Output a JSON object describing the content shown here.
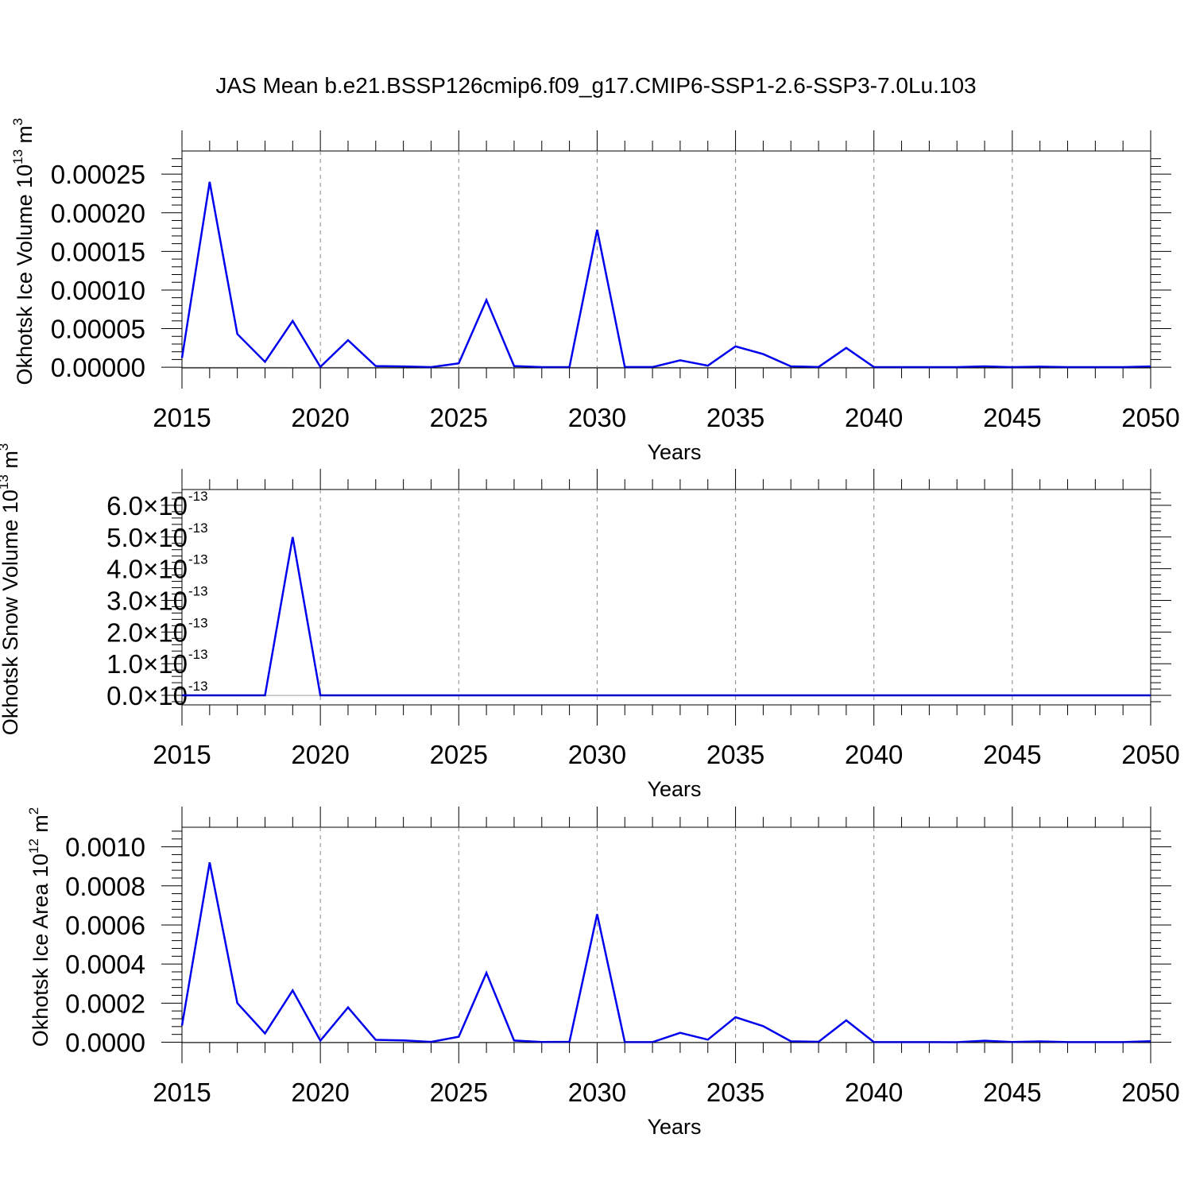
{
  "title": "JAS Mean b.e21.BSSP126cmip6.f09_g17.CMIP6-SSP1-2.6-SSP3-7.0Lu.103",
  "line_color": "#0000ee",
  "chart_data": [
    {
      "type": "line",
      "ylabel_text": "Okhotsk Ice Volume 10",
      "ylabel_exp": "13",
      "ylabel_unit": "m",
      "ylabel_unit_exp": "3",
      "xlabel": "Years",
      "xlim": [
        2015,
        2050
      ],
      "ylim": [
        -9e-07,
        0.00028
      ],
      "xticks": [
        2015,
        2020,
        2025,
        2030,
        2035,
        2040,
        2045,
        2050
      ],
      "xtick_labels": [
        "2015",
        "2020",
        "2025",
        "2030",
        "2035",
        "2040",
        "2045",
        "2050"
      ],
      "yticks": [
        0,
        5e-05,
        0.0001,
        0.00015,
        0.0002,
        0.00025
      ],
      "ytick_labels": [
        "0.00000",
        "0.00005",
        "0.00010",
        "0.00015",
        "0.00020",
        "0.00025"
      ],
      "grid": "vertical dashed",
      "x": [
        2015,
        2016,
        2017,
        2018,
        2019,
        2020,
        2021,
        2022,
        2023,
        2024,
        2025,
        2026,
        2027,
        2028,
        2029,
        2030,
        2031,
        2032,
        2033,
        2034,
        2035,
        2036,
        2037,
        2038,
        2039,
        2040,
        2041,
        2042,
        2043,
        2044,
        2045,
        2046,
        2047,
        2048,
        2049,
        2050
      ],
      "values": [
        1.2e-05,
        0.00024,
        4.3e-05,
        7e-06,
        6e-05,
        5e-07,
        3.5e-05,
        1.5e-06,
        1e-06,
        1e-07,
        5e-06,
        8.7e-05,
        1.5e-06,
        1e-07,
        2e-07,
        0.000178,
        3e-07,
        2e-07,
        9e-06,
        2e-06,
        2.7e-05,
        1.7e-05,
        1.2e-06,
        3e-07,
        2.5e-05,
        2e-07,
        1e-07,
        1e-07,
        1e-07,
        1.2e-06,
        1e-07,
        8e-07,
        1e-07,
        1e-07,
        1e-07,
        1e-06
      ]
    },
    {
      "type": "line",
      "ylabel_text": "Okhotsk Snow Volume 10",
      "ylabel_exp": "13",
      "ylabel_unit": "m",
      "ylabel_unit_exp": "3",
      "xlabel": "Years",
      "xlim": [
        2015,
        2050
      ],
      "ylim": [
        -3e-14,
        6.5e-13
      ],
      "xticks": [
        2015,
        2020,
        2025,
        2030,
        2035,
        2040,
        2045,
        2050
      ],
      "xtick_labels": [
        "2015",
        "2020",
        "2025",
        "2030",
        "2035",
        "2040",
        "2045",
        "2050"
      ],
      "yticks": [
        0,
        1e-13,
        2e-13,
        3e-13,
        4e-13,
        5e-13,
        6e-13
      ],
      "ytick_labels": [
        "0.0",
        "1.0",
        "2.0",
        "3.0",
        "4.0",
        "5.0",
        "6.0"
      ],
      "ytick_times": "×",
      "ytick_base": "10",
      "ytick_exp": "-13",
      "grid": "vertical dashed",
      "x": [
        2015,
        2016,
        2017,
        2018,
        2019,
        2020,
        2021,
        2022,
        2023,
        2024,
        2025,
        2026,
        2027,
        2028,
        2029,
        2030,
        2031,
        2032,
        2033,
        2034,
        2035,
        2036,
        2037,
        2038,
        2039,
        2040,
        2041,
        2042,
        2043,
        2044,
        2045,
        2046,
        2047,
        2048,
        2049,
        2050
      ],
      "values": [
        0,
        0,
        0,
        0,
        5e-13,
        0,
        0,
        0,
        0,
        0,
        0,
        0,
        0,
        0,
        0,
        0,
        0,
        0,
        0,
        0,
        0,
        0,
        0,
        0,
        0,
        0,
        0,
        0,
        0,
        0,
        0,
        0,
        0,
        0,
        0,
        0
      ]
    },
    {
      "type": "line",
      "ylabel_text": "Okhotsk Ice Area 10",
      "ylabel_exp": "12",
      "ylabel_unit": "m",
      "ylabel_unit_exp": "2",
      "xlabel": "Years",
      "xlim": [
        2015,
        2050
      ],
      "ylim": [
        -2e-06,
        0.0011
      ],
      "xticks": [
        2015,
        2020,
        2025,
        2030,
        2035,
        2040,
        2045,
        2050
      ],
      "xtick_labels": [
        "2015",
        "2020",
        "2025",
        "2030",
        "2035",
        "2040",
        "2045",
        "2050"
      ],
      "yticks": [
        0,
        0.0002,
        0.0004,
        0.0006,
        0.0008,
        0.001
      ],
      "ytick_labels": [
        "0.0000",
        "0.0002",
        "0.0004",
        "0.0006",
        "0.0008",
        "0.0010"
      ],
      "grid": "vertical dashed",
      "x": [
        2015,
        2016,
        2017,
        2018,
        2019,
        2020,
        2021,
        2022,
        2023,
        2024,
        2025,
        2026,
        2027,
        2028,
        2029,
        2030,
        2031,
        2032,
        2033,
        2034,
        2035,
        2036,
        2037,
        2038,
        2039,
        2040,
        2041,
        2042,
        2043,
        2044,
        2045,
        2046,
        2047,
        2048,
        2049,
        2050
      ],
      "values": [
        8.5e-05,
        0.00092,
        0.0002,
        4.5e-05,
        0.000265,
        8e-06,
        0.000178,
        1.2e-05,
        9e-06,
        1.5e-06,
        2.8e-05,
        0.000355,
        8.5e-06,
        8e-07,
        2e-06,
        0.000655,
        5e-07,
        4e-07,
        4.8e-05,
        1.3e-05,
        0.000128,
        8.2e-05,
        4.5e-06,
        2e-06,
        0.000112,
        5e-07,
        3e-07,
        6e-07,
        2e-07,
        7.5e-06,
        1e-06,
        4e-06,
        4e-07,
        3e-07,
        3e-07,
        5e-06
      ]
    }
  ]
}
